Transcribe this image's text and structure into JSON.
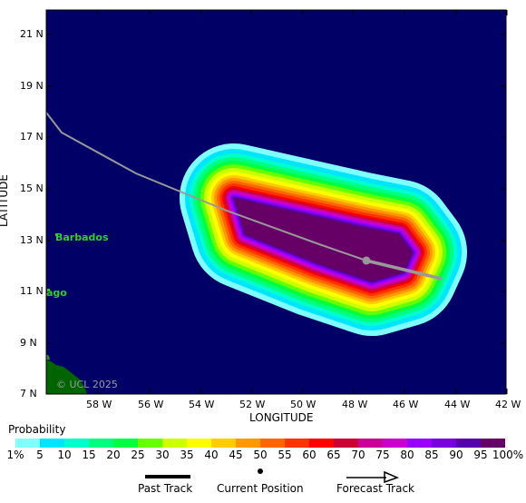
{
  "map": {
    "axes": {
      "xlabel": "LONGITUDE",
      "ylabel": "LATITUDE",
      "x_ticks": [
        "58 W",
        "56 W",
        "54 W",
        "52 W",
        "50 W",
        "48 W",
        "46 W",
        "44 W",
        "42 W"
      ],
      "y_ticks": [
        "21 N",
        "19 N",
        "17 N",
        "15 N",
        "13 N",
        "11 N",
        "9 N",
        "7 N"
      ]
    },
    "places": {
      "barbados": "Barbados",
      "tobago": "ago"
    },
    "copyright": "© UCL 2025",
    "colors": {
      "ocean": "#000066",
      "land": "#006400",
      "track": "#999999",
      "place_label": "#33cc33"
    }
  },
  "legend": {
    "title": "Probability",
    "scale_labels": [
      "1%",
      "5",
      "10",
      "15",
      "20",
      "25",
      "30",
      "35",
      "40",
      "45",
      "50",
      "55",
      "60",
      "65",
      "70",
      "75",
      "80",
      "85",
      "90",
      "95",
      "100%"
    ],
    "colors": [
      "#80ffff",
      "#00e5ff",
      "#00ffcc",
      "#00ff80",
      "#00ff40",
      "#66ff00",
      "#ccff00",
      "#ffff00",
      "#ffcc00",
      "#ff9900",
      "#ff6600",
      "#ff3300",
      "#ff0000",
      "#cc0033",
      "#cc0099",
      "#cc00cc",
      "#9900ff",
      "#7700dd",
      "#5500aa",
      "#660066"
    ],
    "past_track": "Past Track",
    "current_position": "Current Position",
    "forecast_track": "Forecast Track"
  }
}
